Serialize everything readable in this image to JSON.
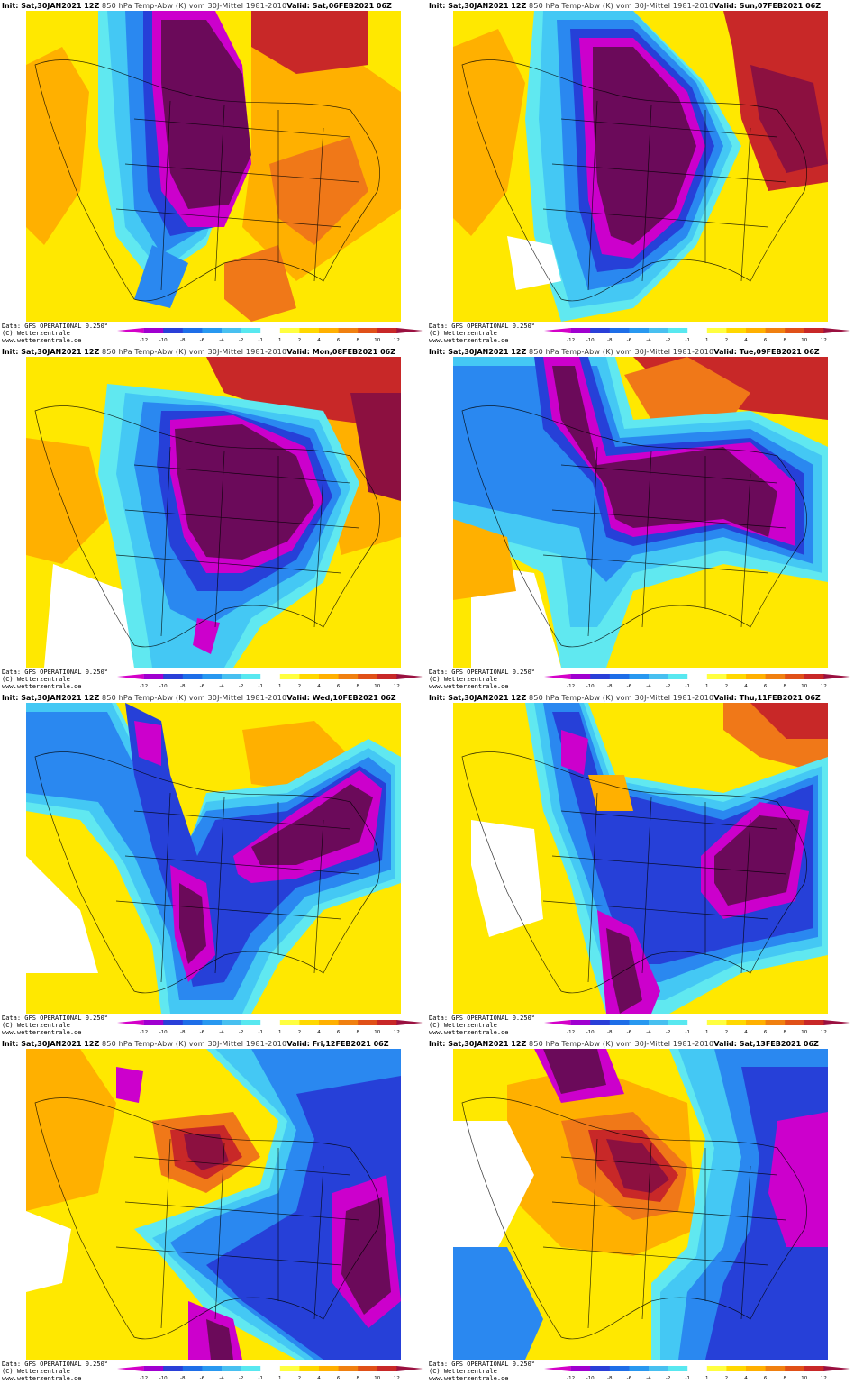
{
  "header": {
    "init_label": "Init:",
    "init_value": "Sat,30JAN2021 12Z",
    "description": "850 hPa Temp-Abw (K) vom 30J-Mittel 1981-2010",
    "valid_label": "Valid:"
  },
  "panels": [
    {
      "valid": "Sat,06FEB2021 06Z"
    },
    {
      "valid": "Sun,07FEB2021 06Z"
    },
    {
      "valid": "Mon,08FEB2021 06Z"
    },
    {
      "valid": "Tue,09FEB2021 06Z"
    },
    {
      "valid": "Wed,10FEB2021 06Z"
    },
    {
      "valid": "Thu,11FEB2021 06Z"
    },
    {
      "valid": "Fri,12FEB2021 06Z"
    },
    {
      "valid": "Sat,13FEB2021 06Z"
    }
  ],
  "footer": {
    "data": "Data: GFS OPERATIONAL 0.250°",
    "copyright": "(C) Wetterzentrale",
    "url": "www.wetterzentrale.de"
  },
  "colorbar": {
    "ticks": [
      "-12",
      "-10",
      "-8",
      "-6",
      "-4",
      "-2",
      "-1",
      "1",
      "2",
      "4",
      "6",
      "8",
      "10",
      "12"
    ],
    "colors": [
      "#d400c8",
      "#a000d0",
      "#2a3fd8",
      "#1e6ee8",
      "#2898f0",
      "#48c0f0",
      "#58e8f0",
      "#ffffff",
      "#ffff40",
      "#ffd800",
      "#ffb000",
      "#f08010",
      "#e05018",
      "#c82828",
      "#9a1040"
    ]
  },
  "palette": {
    "deep_cold": "#6b0a5a",
    "very_cold": "#cc00cc",
    "cold_blue": "#2640d8",
    "blue": "#2a88f0",
    "light_blue": "#44c8f4",
    "cyan": "#60e8f0",
    "neutral": "#ffffff",
    "yellow": "#ffe800",
    "orange": "#ffb000",
    "dark_orange": "#f07818",
    "red": "#c82828",
    "deep_warm": "#8c1040"
  }
}
